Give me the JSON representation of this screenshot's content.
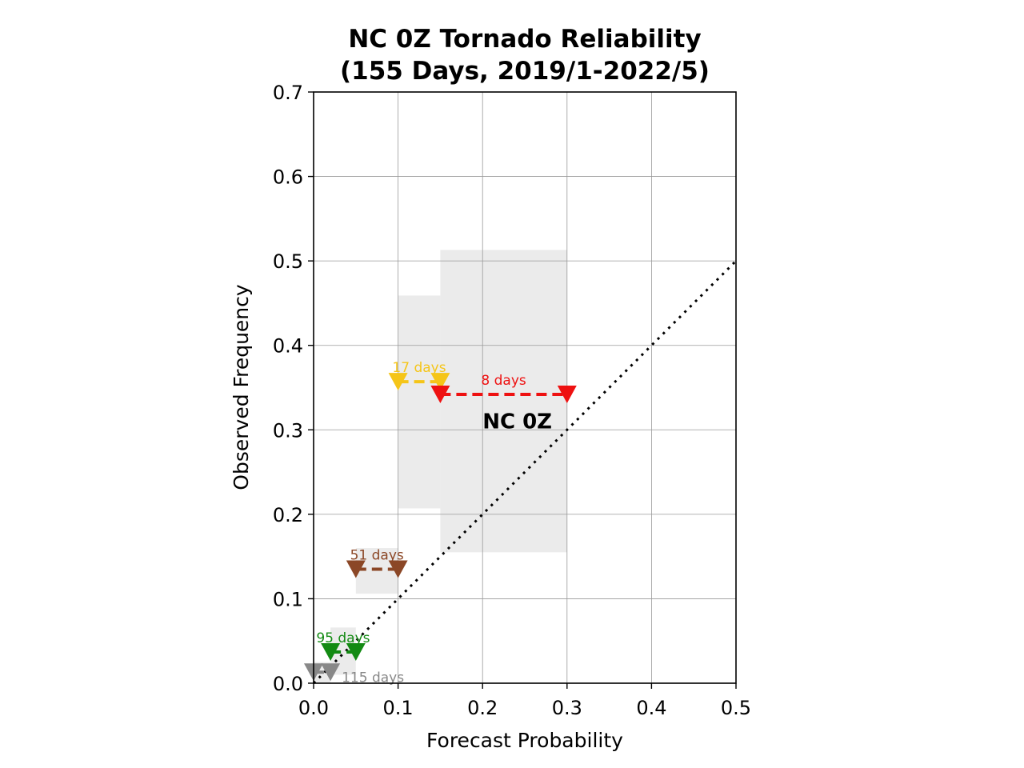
{
  "chart_data": {
    "type": "scatter",
    "title_lines": [
      "NC 0Z Tornado Reliability",
      "(155 Days, 2019/1-2022/5)"
    ],
    "xlabel": "Forecast Probability",
    "ylabel": "Observed Frequency",
    "xlim": [
      0.0,
      0.5
    ],
    "ylim": [
      0.0,
      0.7
    ],
    "xticks": [
      0.0,
      0.1,
      0.2,
      0.3,
      0.4,
      0.5
    ],
    "xtick_labels": [
      "0.0",
      "0.1",
      "0.2",
      "0.3",
      "0.4",
      "0.5"
    ],
    "yticks": [
      0.0,
      0.1,
      0.2,
      0.3,
      0.4,
      0.5,
      0.6,
      0.7
    ],
    "ytick_labels": [
      "0.0",
      "0.1",
      "0.2",
      "0.3",
      "0.4",
      "0.5",
      "0.6",
      "0.7"
    ],
    "grid": true,
    "perfect_reliability_line": {
      "x": [
        0.0,
        0.5
      ],
      "y": [
        0.0,
        0.5
      ],
      "style": "dotted",
      "color": "#000000"
    },
    "bins": [
      {
        "label": "115 days",
        "x_low": 0.0,
        "x_high": 0.02,
        "observed": 0.013,
        "ci": [
          0.0,
          0.025
        ],
        "color": "#888888"
      },
      {
        "label": "95 days",
        "x_low": 0.02,
        "x_high": 0.05,
        "observed": 0.037,
        "ci": [
          0.01,
          0.066
        ],
        "color": "#138a13"
      },
      {
        "label": "51 days",
        "x_low": 0.05,
        "x_high": 0.1,
        "observed": 0.135,
        "ci": [
          0.106,
          0.16
        ],
        "color": "#8b4726"
      },
      {
        "label": "17 days",
        "x_low": 0.1,
        "x_high": 0.15,
        "observed": 0.357,
        "ci": [
          0.207,
          0.459
        ],
        "color": "#f5c518"
      },
      {
        "label": "8 days",
        "x_low": 0.15,
        "x_high": 0.3,
        "observed": 0.342,
        "ci": [
          0.155,
          0.513
        ],
        "color": "#ee1111"
      }
    ],
    "annotation": {
      "text": "NC 0Z",
      "x": 0.2,
      "y": 0.31
    }
  }
}
